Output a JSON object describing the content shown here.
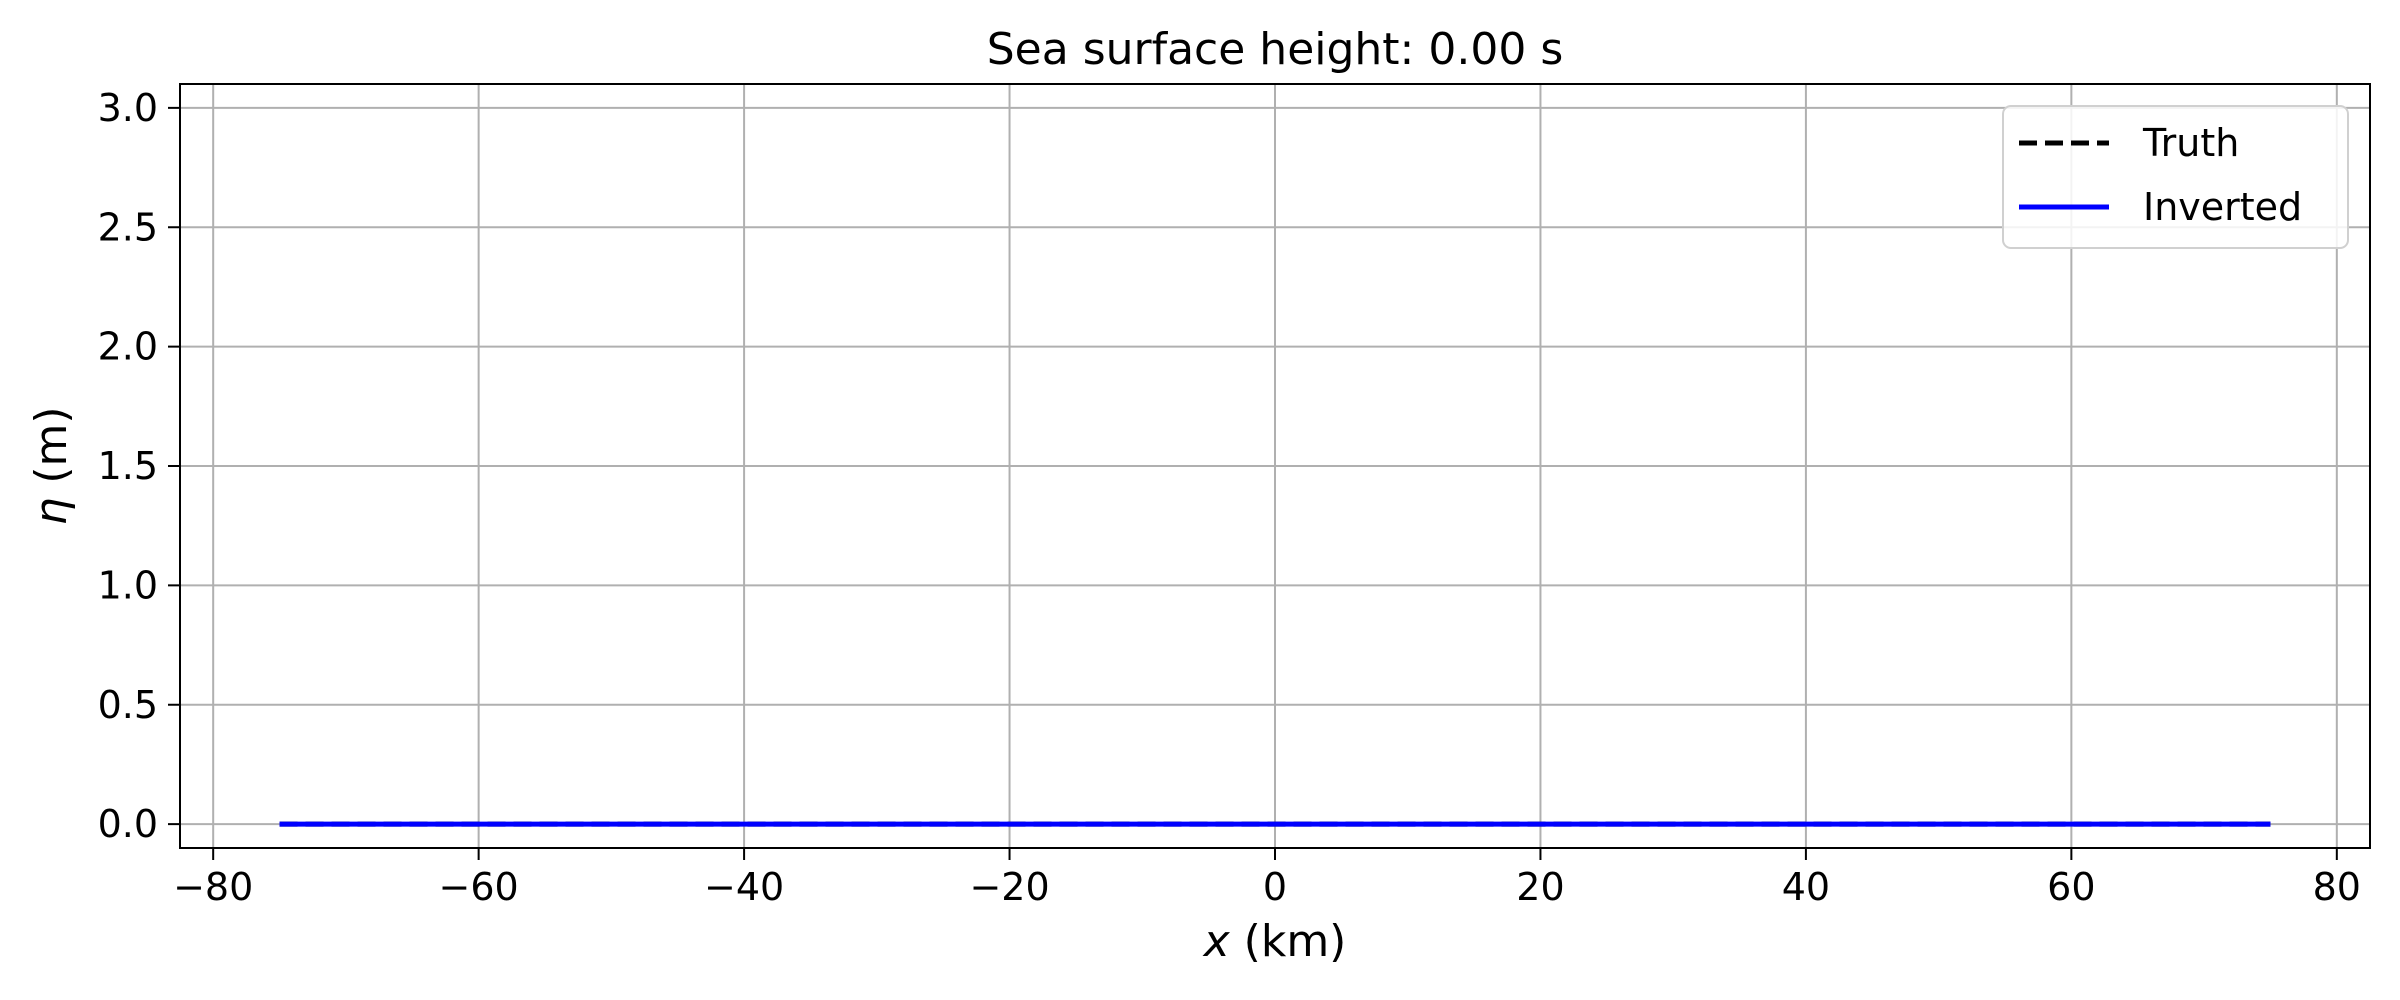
{
  "chart_data": {
    "type": "line",
    "title": "Sea surface height:  0.00 s",
    "xlabel_var": "x",
    "xlabel_unit": " (km)",
    "ylabel_var": "η",
    "ylabel_unit": " (m)",
    "xlim": [
      -82.5,
      82.5
    ],
    "ylim": [
      -0.1,
      3.1
    ],
    "xticks": [
      -80,
      -60,
      -40,
      -20,
      0,
      20,
      40,
      60,
      80
    ],
    "xtick_labels": [
      "−80",
      "−60",
      "−40",
      "−20",
      "0",
      "20",
      "40",
      "60",
      "80"
    ],
    "yticks": [
      0.0,
      0.5,
      1.0,
      1.5,
      2.0,
      2.5,
      3.0
    ],
    "ytick_labels": [
      "0.0",
      "0.5",
      "1.0",
      "1.5",
      "2.0",
      "2.5",
      "3.0"
    ],
    "grid": true,
    "legend_position": "top-right",
    "series": [
      {
        "name": "Truth",
        "color": "#000000",
        "style": "dashed",
        "x": [
          -75,
          75
        ],
        "y": [
          0,
          0
        ]
      },
      {
        "name": "Inverted",
        "color": "#0000ff",
        "style": "solid",
        "x": [
          -75,
          75
        ],
        "y": [
          0,
          0
        ]
      }
    ]
  }
}
